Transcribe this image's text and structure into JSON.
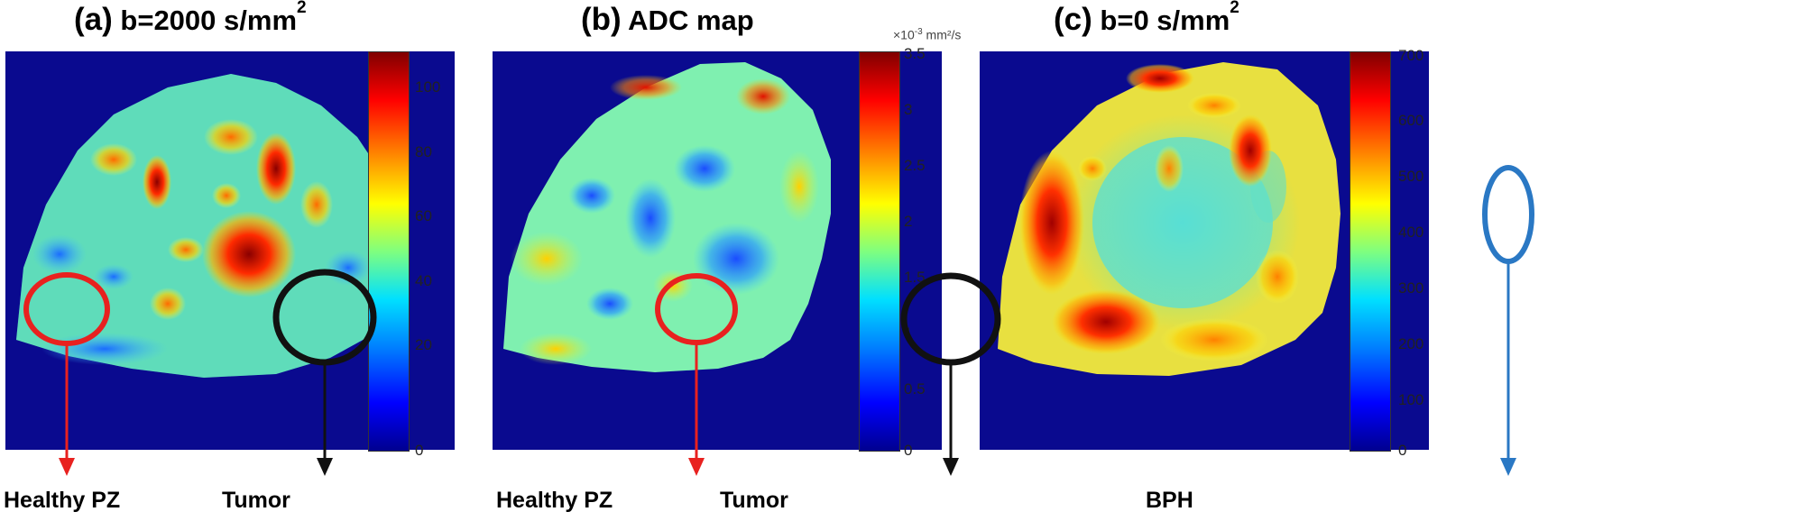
{
  "panels": [
    {
      "label": "(a)",
      "title_main": "b=2000 s/mm",
      "title_sup": "2",
      "colorbar_ticks": [
        "100",
        "80",
        "60",
        "40",
        "20",
        "0"
      ],
      "colorbar_unit": "",
      "annotations": [
        "Healthy PZ",
        "Tumor"
      ]
    },
    {
      "label": "(b)",
      "title_main": "ADC map",
      "title_sup": "",
      "colorbar_ticks": [
        "3.5",
        "3",
        "2.5",
        "2",
        "1.5",
        "1",
        "0.5",
        "0"
      ],
      "colorbar_unit_prefix": "×10",
      "colorbar_unit_exp": "-3",
      "colorbar_unit_suffix": "mm²/s",
      "annotations": [
        "Healthy PZ",
        "Tumor"
      ]
    },
    {
      "label": "(c)",
      "title_main": "b=0 s/mm",
      "title_sup": "2",
      "colorbar_ticks": [
        "700",
        "600",
        "500",
        "400",
        "300",
        "200",
        "100",
        "0"
      ],
      "colorbar_unit": "",
      "annotations": [
        "BPH"
      ]
    }
  ],
  "colors": {
    "background_map": "#0a0a8f",
    "healthy_marker": "#e8211f",
    "tumor_marker": "#111111",
    "bph_marker": "#2a78c4"
  }
}
